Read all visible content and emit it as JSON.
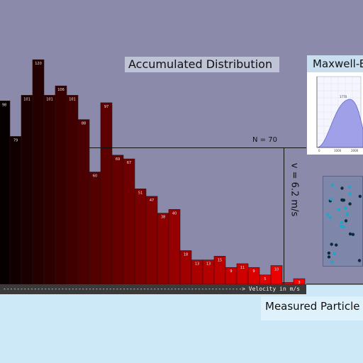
{
  "accent_colors": {
    "bar_start": "#070000",
    "bar_end": "#ff0000",
    "panel_bg": "#8c8aab",
    "bottom_bg": "#cde9f8"
  },
  "panels": {
    "accumulated_title": "Accumulated Distribution",
    "maxwell_title": "Maxwell-B",
    "measured_title": "Measured Particle"
  },
  "readouts": {
    "n_label": "N = 70",
    "v_label": "v = 6.2 m/s"
  },
  "axis": {
    "label": "----------------------------------------------------------------------> Velocity in m/s"
  },
  "chart_data": {
    "type": "bar",
    "title": "Accumulated Distribution",
    "xlabel": "Velocity in m/s",
    "ylabel": "",
    "values": [
      98,
      79,
      101,
      120,
      101,
      106,
      101,
      88,
      60,
      97,
      69,
      67,
      51,
      47,
      38,
      40,
      18,
      13,
      13,
      15,
      9,
      11,
      9,
      5,
      10,
      1,
      3
    ],
    "ylim": [
      0,
      125
    ]
  },
  "mini_graph": {
    "peak_label": "1770",
    "x_ticks": [
      "0",
      "1000",
      "2000"
    ]
  },
  "particles": {
    "count": 30,
    "colors": [
      "#1fa6c8",
      "#0b2b3a"
    ]
  }
}
